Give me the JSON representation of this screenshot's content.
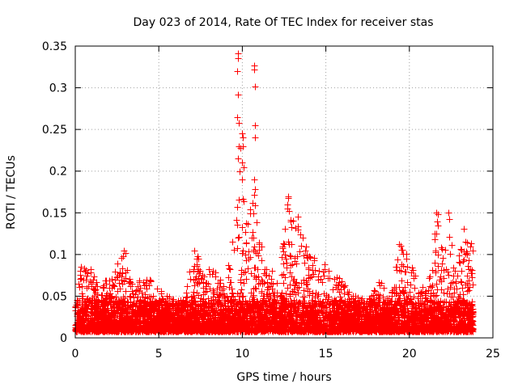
{
  "chart_data": {
    "type": "scatter",
    "title": "Day 023 of 2014, Rate Of TEC Index for receiver stas",
    "xlabel": "GPS time / hours",
    "ylabel": "ROTI / TECUs",
    "xlim": [
      0,
      25
    ],
    "ylim": [
      0,
      0.35
    ],
    "xticks": [
      0,
      5,
      10,
      15,
      20,
      25
    ],
    "xtick_labels": [
      "0",
      "5",
      "10",
      "15",
      "20",
      "25"
    ],
    "yticks": [
      0,
      0.05,
      0.1,
      0.15,
      0.2,
      0.25,
      0.3,
      0.35
    ],
    "ytick_labels": [
      "0",
      "0.05",
      "0.1",
      "0.15",
      "0.2",
      "0.25",
      "0.3",
      "0.35"
    ],
    "grid": true,
    "marker": "+",
    "color": "#ff0000",
    "x_data_range": [
      0,
      23.8
    ],
    "dense_band_mean": 0.022,
    "envelope": [
      {
        "x": 0.0,
        "y": 0.05
      },
      {
        "x": 0.3,
        "y": 0.085
      },
      {
        "x": 0.9,
        "y": 0.082
      },
      {
        "x": 1.5,
        "y": 0.065
      },
      {
        "x": 2.4,
        "y": 0.085
      },
      {
        "x": 2.8,
        "y": 0.105
      },
      {
        "x": 3.3,
        "y": 0.07
      },
      {
        "x": 4.5,
        "y": 0.07
      },
      {
        "x": 5.5,
        "y": 0.05
      },
      {
        "x": 6.5,
        "y": 0.045
      },
      {
        "x": 7.1,
        "y": 0.105
      },
      {
        "x": 8.0,
        "y": 0.085
      },
      {
        "x": 9.0,
        "y": 0.07
      },
      {
        "x": 9.5,
        "y": 0.13
      },
      {
        "x": 9.8,
        "y": 0.2
      },
      {
        "x": 10.0,
        "y": 0.24
      },
      {
        "x": 10.3,
        "y": 0.15
      },
      {
        "x": 10.6,
        "y": 0.19
      },
      {
        "x": 11.0,
        "y": 0.12
      },
      {
        "x": 11.6,
        "y": 0.08
      },
      {
        "x": 12.3,
        "y": 0.1
      },
      {
        "x": 12.7,
        "y": 0.17
      },
      {
        "x": 13.2,
        "y": 0.145
      },
      {
        "x": 13.8,
        "y": 0.125
      },
      {
        "x": 14.5,
        "y": 0.1
      },
      {
        "x": 15.5,
        "y": 0.08
      },
      {
        "x": 16.5,
        "y": 0.055
      },
      {
        "x": 17.5,
        "y": 0.045
      },
      {
        "x": 18.2,
        "y": 0.07
      },
      {
        "x": 18.8,
        "y": 0.05
      },
      {
        "x": 19.4,
        "y": 0.112
      },
      {
        "x": 20.0,
        "y": 0.105
      },
      {
        "x": 20.6,
        "y": 0.055
      },
      {
        "x": 21.2,
        "y": 0.075
      },
      {
        "x": 21.6,
        "y": 0.15
      },
      {
        "x": 22.0,
        "y": 0.1
      },
      {
        "x": 22.4,
        "y": 0.15
      },
      {
        "x": 22.8,
        "y": 0.09
      },
      {
        "x": 23.3,
        "y": 0.13
      },
      {
        "x": 23.8,
        "y": 0.12
      }
    ],
    "peaks": [
      {
        "x": 9.75,
        "y": 0.341
      },
      {
        "x": 9.75,
        "y": 0.335
      },
      {
        "x": 9.7,
        "y": 0.32
      },
      {
        "x": 9.75,
        "y": 0.292
      },
      {
        "x": 9.7,
        "y": 0.265
      },
      {
        "x": 9.8,
        "y": 0.258
      },
      {
        "x": 9.8,
        "y": 0.23
      },
      {
        "x": 9.9,
        "y": 0.228
      },
      {
        "x": 9.75,
        "y": 0.215
      },
      {
        "x": 9.85,
        "y": 0.2
      },
      {
        "x": 10.0,
        "y": 0.245
      },
      {
        "x": 10.05,
        "y": 0.24
      },
      {
        "x": 10.05,
        "y": 0.23
      },
      {
        "x": 10.0,
        "y": 0.21
      },
      {
        "x": 10.0,
        "y": 0.19
      },
      {
        "x": 10.7,
        "y": 0.327
      },
      {
        "x": 10.7,
        "y": 0.322
      },
      {
        "x": 10.75,
        "y": 0.302
      },
      {
        "x": 10.75,
        "y": 0.255
      },
      {
        "x": 10.75,
        "y": 0.24
      },
      {
        "x": 10.7,
        "y": 0.19
      },
      {
        "x": 10.75,
        "y": 0.178
      },
      {
        "x": 12.75,
        "y": 0.17
      },
      {
        "x": 12.7,
        "y": 0.16
      },
      {
        "x": 12.8,
        "y": 0.152
      },
      {
        "x": 13.3,
        "y": 0.145
      },
      {
        "x": 13.2,
        "y": 0.132
      },
      {
        "x": 21.6,
        "y": 0.15
      },
      {
        "x": 21.7,
        "y": 0.148
      },
      {
        "x": 22.35,
        "y": 0.15
      },
      {
        "x": 22.4,
        "y": 0.143
      },
      {
        "x": 23.25,
        "y": 0.131
      },
      {
        "x": 19.4,
        "y": 0.112
      },
      {
        "x": 7.1,
        "y": 0.105
      },
      {
        "x": 2.9,
        "y": 0.105
      },
      {
        "x": 3.0,
        "y": 0.102
      },
      {
        "x": 0.35,
        "y": 0.085
      },
      {
        "x": 0.9,
        "y": 0.082
      }
    ],
    "random_seed": 23
  }
}
